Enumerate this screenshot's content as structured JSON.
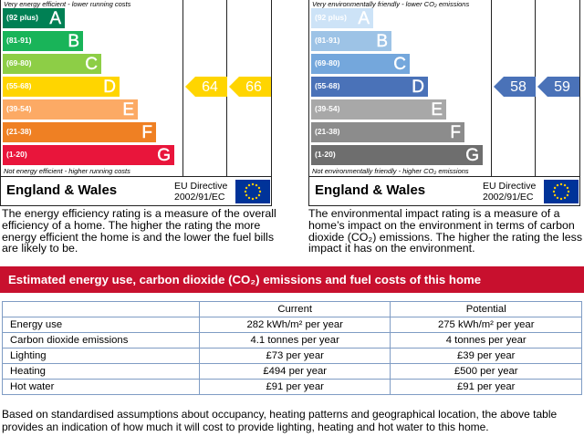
{
  "energy": {
    "top_note": "Very energy efficient - lower running costs",
    "bands": [
      {
        "range": "(92 plus)",
        "letter": "A",
        "color": "#008054"
      },
      {
        "range": "(81-91)",
        "letter": "B",
        "color": "#19b459"
      },
      {
        "range": "(69-80)",
        "letter": "C",
        "color": "#8dce46"
      },
      {
        "range": "(55-68)",
        "letter": "D",
        "color": "#ffd500"
      },
      {
        "range": "(39-54)",
        "letter": "E",
        "color": "#fcaa65"
      },
      {
        "range": "(21-38)",
        "letter": "F",
        "color": "#ef8023"
      },
      {
        "range": "(1-20)",
        "letter": "G",
        "color": "#e9153b"
      }
    ],
    "bottom_note": "Not energy efficient - higher running costs",
    "region": "England & Wales",
    "directive": [
      "EU Directive",
      "2002/91/EC"
    ],
    "current": 64,
    "potential": 66,
    "arrow_color": "#ffd500",
    "description": "The energy efficiency rating is a measure of the overall efficiency of a home. The higher the rating the more energy efficient the home is and the lower the fuel bills are likely to be."
  },
  "environmental": {
    "top_note": "Very environmentally friendly - lower CO₂ emissions",
    "bands": [
      {
        "range": "(92 plus)",
        "letter": "A",
        "color": "#cde3f7"
      },
      {
        "range": "(81-91)",
        "letter": "B",
        "color": "#9dc3e6"
      },
      {
        "range": "(69-80)",
        "letter": "C",
        "color": "#74a7dc"
      },
      {
        "range": "(55-68)",
        "letter": "D",
        "color": "#4a72b8"
      },
      {
        "range": "(39-54)",
        "letter": "E",
        "color": "#a8a8a8"
      },
      {
        "range": "(21-38)",
        "letter": "F",
        "color": "#8c8c8c"
      },
      {
        "range": "(1-20)",
        "letter": "G",
        "color": "#6e6e6e"
      }
    ],
    "bottom_note": "Not environmentally friendly - higher CO₂ emissions",
    "region": "England & Wales",
    "directive": [
      "EU Directive",
      "2002/91/EC"
    ],
    "current": 58,
    "potential": 59,
    "arrow_color": "#4a72b8",
    "description": "The environmental impact rating is a measure of a home’s impact on the environment in terms of carbon dioxide (CO₂) emissions. The higher the rating the less impact it has on the environment."
  },
  "section_title": "Estimated energy use, carbon dioxide (CO₂) emissions and fuel costs of this home",
  "table": {
    "columns": [
      "Current",
      "Potential"
    ],
    "rows": [
      [
        "Energy use",
        "282 kWh/m² per year",
        "275 kWh/m² per year"
      ],
      [
        "Carbon dioxide emissions",
        "4.1 tonnes per year",
        "4 tonnes per year"
      ],
      [
        "Lighting",
        "£73 per year",
        "£39 per year"
      ],
      [
        "Heating",
        "£494 per year",
        "£500 per year"
      ],
      [
        "Hot water",
        "£91 per year",
        "£91 per year"
      ]
    ]
  },
  "footnote": "Based on standardised assumptions about occupancy, heating patterns and geographical location, the above table provides an indication of how much it will cost to provide lighting, heating and hot water to this home."
}
